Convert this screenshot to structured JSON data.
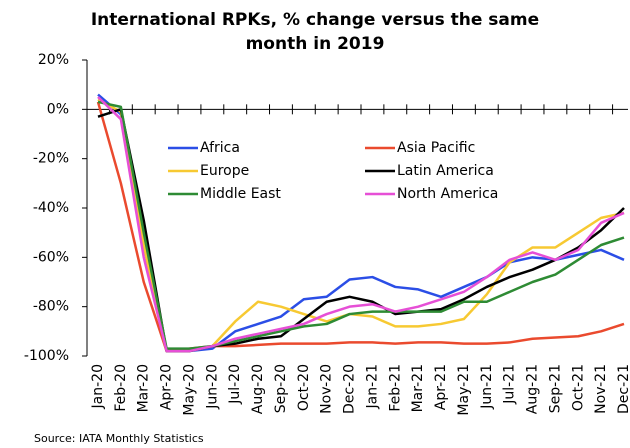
{
  "chart_data": {
    "type": "line",
    "title": "International RPKs, % change versus the same month in 2019",
    "source": "Source: IATA Monthly Statistics",
    "categories": [
      "Jan-20",
      "Feb-20",
      "Mar-20",
      "Apr-20",
      "May-20",
      "Jun-20",
      "Jul-20",
      "Aug-20",
      "Sep-20",
      "Oct-20",
      "Nov-20",
      "Dec-20",
      "Jan-21",
      "Feb-21",
      "Mar-21",
      "Apr-21",
      "May-21",
      "Jun-21",
      "Jul-21",
      "Aug-21",
      "Sep-21",
      "Oct-21",
      "Nov-21",
      "Dec-21"
    ],
    "ylim": [
      -100,
      20
    ],
    "yticks": [
      {
        "value": -100,
        "label": "-100%"
      },
      {
        "value": -80,
        "label": "-80%"
      },
      {
        "value": -60,
        "label": "-60%"
      },
      {
        "value": -40,
        "label": "-40%"
      },
      {
        "value": -20,
        "label": "-20%"
      },
      {
        "value": 0,
        "label": "0%"
      },
      {
        "value": 20,
        "label": "20%"
      }
    ],
    "series": [
      {
        "name": "Africa",
        "color": "#2b4ee6",
        "values": [
          6,
          -2,
          -55,
          -98,
          -98,
          -97,
          -90,
          -87,
          -84,
          -77,
          -76,
          -69,
          -68,
          -72,
          -73,
          -76,
          -72,
          -68,
          -62,
          -60,
          -61,
          -59,
          -57,
          -61
        ]
      },
      {
        "name": "Asia Pacific",
        "color": "#ea4a2e",
        "values": [
          3,
          -30,
          -70,
          -98,
          -97,
          -96,
          -96,
          -95.5,
          -95,
          -95,
          -95,
          -94.5,
          -94.5,
          -95,
          -94.5,
          -94.5,
          -95,
          -95,
          -94.5,
          -93,
          -92.5,
          -92,
          -90,
          -87
        ]
      },
      {
        "name": "Europe",
        "color": "#f7c932",
        "values": [
          4,
          -1,
          -55,
          -98,
          -98,
          -96,
          -86,
          -78,
          -80,
          -83,
          -86,
          -83,
          -84,
          -88,
          -88,
          -87,
          -85,
          -75,
          -62,
          -56,
          -56,
          -50,
          -44,
          -42
        ]
      },
      {
        "name": "Latin America",
        "color": "#000000",
        "values": [
          -3,
          0,
          -45,
          -98,
          -98,
          -96,
          -95,
          -93,
          -92,
          -85,
          -78,
          -76,
          -78,
          -83,
          -82,
          -81,
          -77,
          -72,
          -68,
          -65,
          -61,
          -56,
          -49,
          -40
        ]
      },
      {
        "name": "Middle East",
        "color": "#2e8b34",
        "values": [
          3,
          1,
          -50,
          -97,
          -97,
          -96,
          -94,
          -92,
          -90,
          -88,
          -87,
          -83,
          -82,
          -82,
          -82,
          -82,
          -78,
          -78,
          -74,
          -70,
          -67,
          -61,
          -55,
          -52
        ]
      },
      {
        "name": "North America",
        "color": "#e64fd6",
        "values": [
          5,
          -4,
          -60,
          -98,
          -98,
          -96,
          -93,
          -91,
          -89,
          -87,
          -83,
          -80,
          -79,
          -82,
          -80,
          -77,
          -74,
          -68,
          -61,
          -58,
          -61,
          -57,
          -46,
          -42
        ]
      }
    ]
  }
}
